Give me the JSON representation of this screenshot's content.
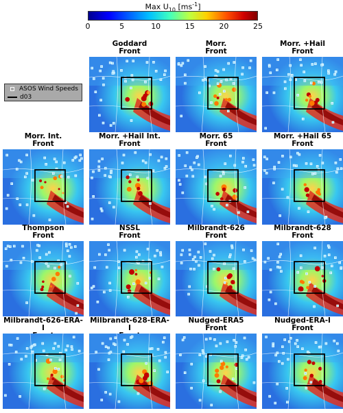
{
  "colorbar": {
    "title_main": "Max U",
    "title_sub": "10",
    "title_unit_pre": " [ms",
    "title_unit_sup": "-1",
    "title_unit_post": "]",
    "ticks": [
      "0",
      "5",
      "10",
      "15",
      "20",
      "25"
    ],
    "range": [
      0,
      25
    ]
  },
  "legend": {
    "items": [
      "ASOS Wind Speeds",
      "d03"
    ],
    "placement": "upper-left"
  },
  "panels": [
    {
      "line1": "Goddard",
      "line2": "Front"
    },
    {
      "line1": "Morr.",
      "line2": "Front"
    },
    {
      "line1": "Morr. +Hail",
      "line2": "Front"
    },
    {
      "line1": "Morr. Int.",
      "line2": "Front"
    },
    {
      "line1": "Morr. +Hail Int.",
      "line2": "Front"
    },
    {
      "line1": "Morr. 65",
      "line2": "Front"
    },
    {
      "line1": "Morr. +Hail 65",
      "line2": "Front"
    },
    {
      "line1": "Thompson",
      "line2": "Front"
    },
    {
      "line1": "NSSL",
      "line2": "Front"
    },
    {
      "line1": "Milbrandt-626",
      "line2": "Front"
    },
    {
      "line1": "Milbrandt-628",
      "line2": "Front"
    },
    {
      "line1": "Milbrandt-626-ERA-I",
      "line2": "Front"
    },
    {
      "line1": "Milbrandt-628-ERA-I",
      "line2": "Front"
    },
    {
      "line1": "Nudged-ERA5",
      "line2": "Front"
    },
    {
      "line1": "Nudged-ERA-I",
      "line2": "Front"
    }
  ],
  "chart_data": {
    "type": "heatmap",
    "variable": "Max U10",
    "units": "ms-1",
    "color_range": [
      0,
      25
    ],
    "panel_count": 15,
    "layout": "4 rows: 3 panels in row 1, 4 panels in rows 2-4"
  }
}
